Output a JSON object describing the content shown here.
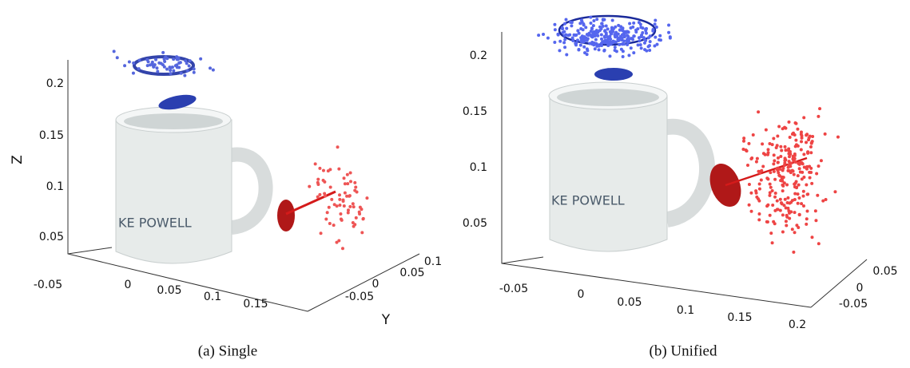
{
  "panels": [
    {
      "z_ticks": [
        "0.05",
        "0.1",
        "0.15",
        "0.2"
      ],
      "x_ticks": [
        "-0.05",
        "0",
        "0.05",
        "0.1",
        "0.15"
      ],
      "y_ticks": [
        "-0.05",
        "0",
        "0.05",
        "0.1"
      ],
      "z_label": "Z",
      "y_label": "Y",
      "mug_text": "KE POWELL",
      "caption": "(a) Single"
    },
    {
      "z_ticks": [
        "0.05",
        "0.1",
        "0.15",
        "0.2"
      ],
      "x_ticks": [
        "-0.05",
        "0",
        "0.05",
        "0.1",
        "0.15",
        "0.2"
      ],
      "y_ticks": [
        "-0.05",
        "0",
        "0.05"
      ],
      "mug_text": "KE POWELL",
      "caption": "(b) Unified"
    }
  ]
}
